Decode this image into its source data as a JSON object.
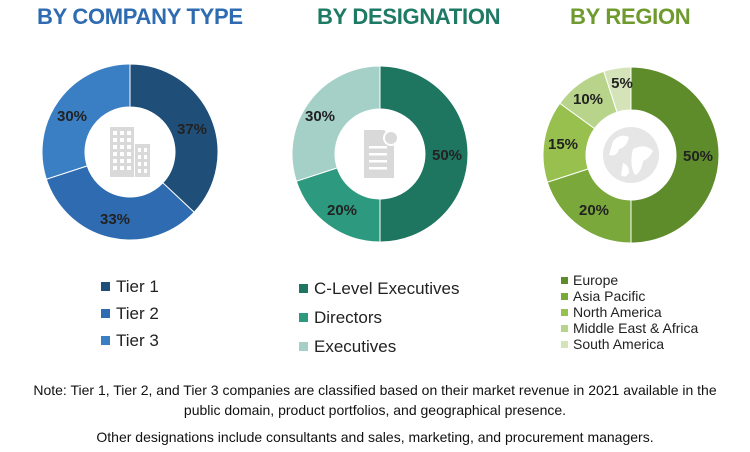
{
  "chart_data": [
    {
      "type": "pie",
      "title": "BY COMPANY TYPE",
      "categories": [
        "Tier 1",
        "Tier 2",
        "Tier 3"
      ],
      "values": [
        37,
        33,
        30
      ],
      "labels": [
        "37%",
        "33%",
        "30%"
      ],
      "colors": [
        "#1f4e79",
        "#2e6bb0",
        "#3a7fc4"
      ],
      "center_icon": "building-icon",
      "legend_position": "bottom"
    },
    {
      "type": "pie",
      "title": "BY DESIGNATION",
      "categories": [
        "C-Level Executives",
        "Directors",
        "Executives"
      ],
      "values": [
        50,
        20,
        30
      ],
      "labels": [
        "50%",
        "20%",
        "30%"
      ],
      "colors": [
        "#1e7560",
        "#2d9a80",
        "#a4d0c7"
      ],
      "center_icon": "document-icon",
      "legend_position": "bottom"
    },
    {
      "type": "pie",
      "title": "BY REGION",
      "categories": [
        "Europe",
        "Asia Pacific",
        "North America",
        "Middle East & Africa",
        "South America"
      ],
      "values": [
        50,
        20,
        15,
        10,
        5
      ],
      "labels": [
        "50%",
        "20%",
        "15%",
        "10%",
        "5%"
      ],
      "colors": [
        "#5e8c2a",
        "#7aa83a",
        "#97c04e",
        "#b8d48a",
        "#d4e4b8"
      ],
      "center_icon": "globe-icon",
      "legend_position": "bottom"
    }
  ],
  "notes": {
    "line1": "Note: Tier 1, Tier 2, and Tier 3 companies are classified based on their market revenue in 2021 available in the",
    "line2": "public domain, product portfolios, and geographical presence.",
    "line3": "Other designations include consultants and sales, marketing, and procurement managers."
  },
  "colors": {
    "title_blue": "#2e6bb0",
    "title_teal": "#1e7a64",
    "title_green": "#6f9a2e"
  }
}
